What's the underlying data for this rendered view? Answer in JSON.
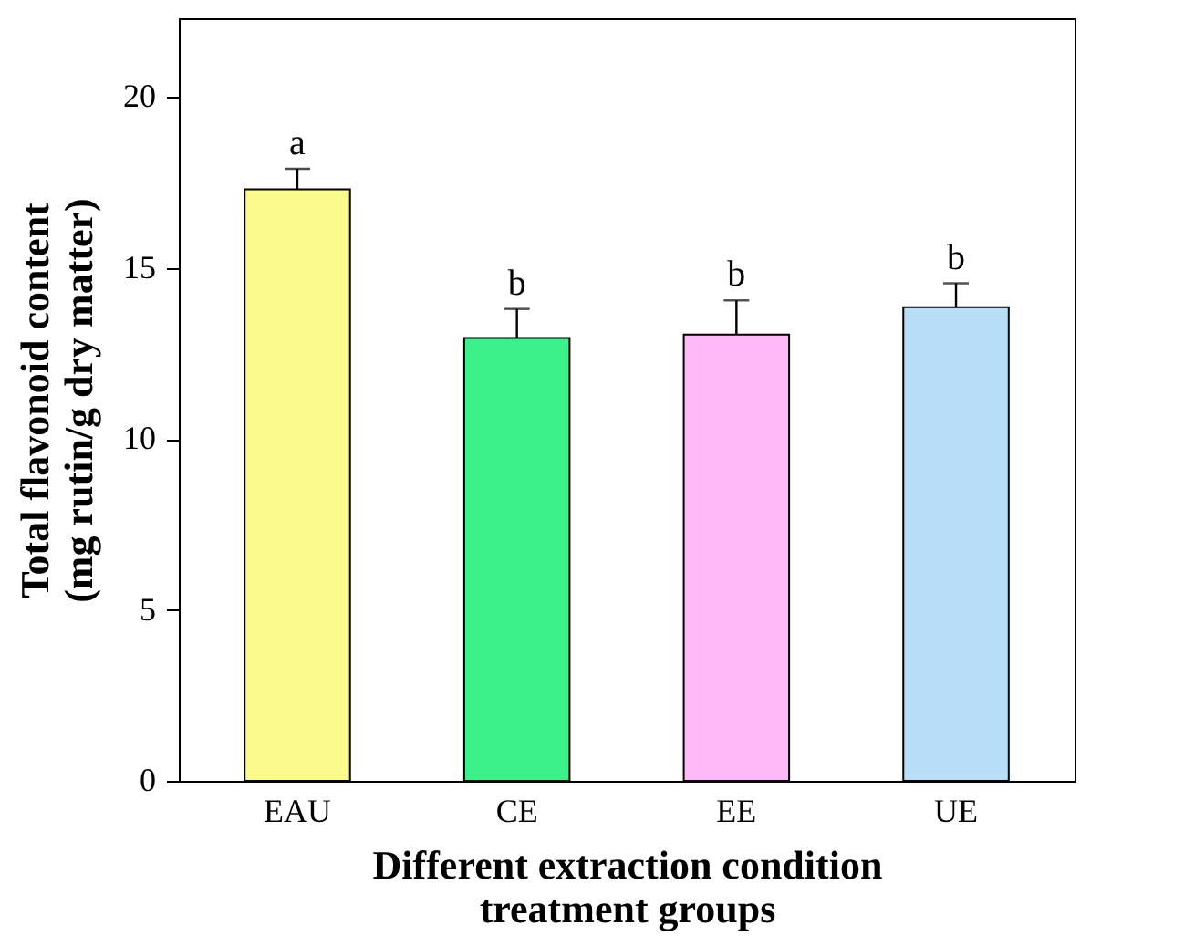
{
  "chart_data": {
    "type": "bar",
    "xlabel": "Different extraction condition\ntreatment groups",
    "ylabel": "Total flavonoid content\n(mg rutin/g dry matter)",
    "categories": [
      "EAU",
      "CE",
      "EE",
      "UE"
    ],
    "values": [
      17.3,
      12.95,
      13.05,
      13.85
    ],
    "errors": [
      0.6,
      0.85,
      1.0,
      0.7
    ],
    "colors": [
      "#fbfb8c",
      "#3cf08a",
      "#ffb8f8",
      "#b8def8"
    ],
    "annotations": [
      {
        "text": "a",
        "x": "EAU",
        "y": 17.9
      },
      {
        "text": "b",
        "x": "CE",
        "y": 13.8
      },
      {
        "text": "b",
        "x": "EE",
        "y": 14.05
      },
      {
        "text": "b",
        "x": "UE",
        "y": 14.55
      }
    ],
    "ylim": [
      0,
      22.3
    ],
    "yticks": [
      0,
      5,
      10,
      15,
      20
    ],
    "grid": false,
    "legend": false
  }
}
